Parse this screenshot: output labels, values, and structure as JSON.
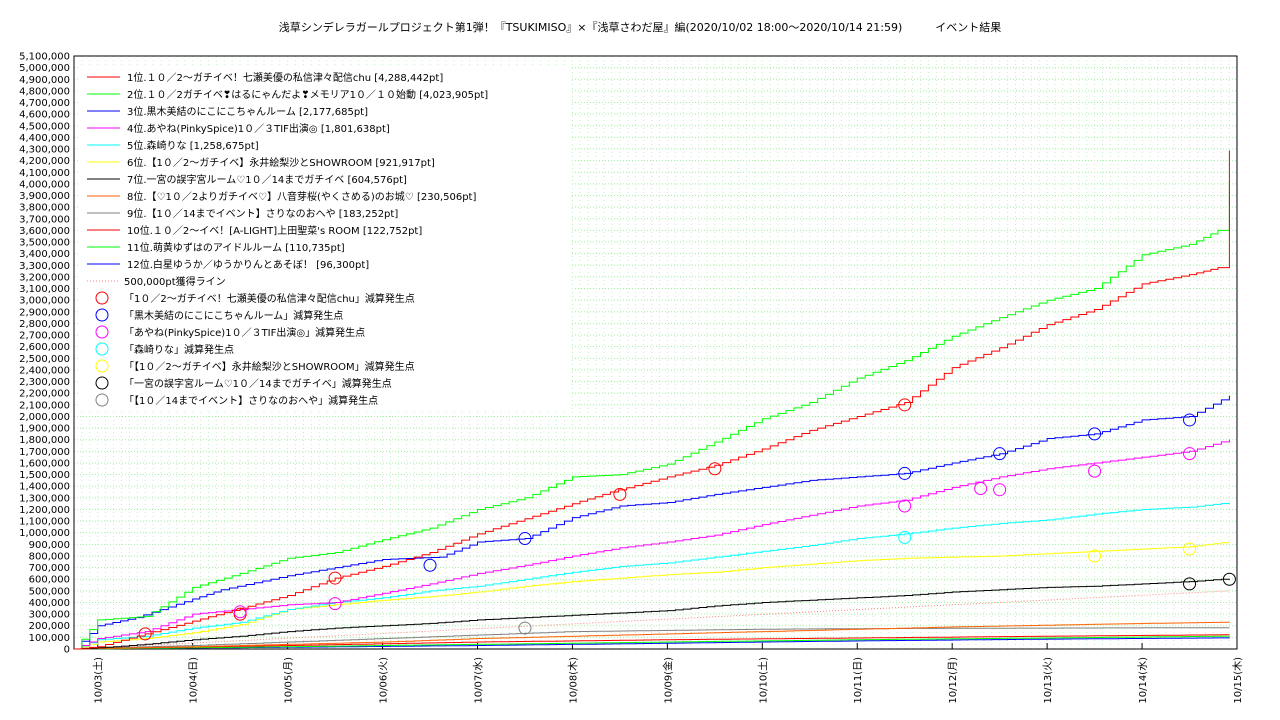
{
  "chart_data": {
    "type": "line",
    "title": "浅草シンデレラガールプロジェクト第1弾！『TSUKIMISO』×『浅草さわだ屋』編(2020/10/02 18:00〜2020/10/14 21:59)　　　イベント結果",
    "ylim": [
      0,
      5100000
    ],
    "y_tick_step": 100000,
    "x_ticks": [
      "10/03(土)",
      "10/04(日)",
      "10/05(月)",
      "10/06(火)",
      "10/07(水)",
      "10/08(木)",
      "10/09(金)",
      "10/10(土)",
      "10/11(日)",
      "10/12(月)",
      "10/13(火)",
      "10/14(水)",
      "10/15(木)"
    ],
    "x_unit": "days from 10/03 00:00",
    "x_range": [
      -0.25,
      12
    ],
    "grid": true,
    "legend_position": "top-left",
    "series": [
      {
        "name": "1位.１０／2〜ガチイベ！七瀬美優の私信津々配信chu [4,288,442pt]",
        "color": "#ff0000",
        "points": [
          [
            -0.25,
            0
          ],
          [
            0,
            20000
          ],
          [
            0.5,
            130000
          ],
          [
            1,
            240000
          ],
          [
            1.5,
            350000
          ],
          [
            2,
            460000
          ],
          [
            2.5,
            610000
          ],
          [
            3,
            710000
          ],
          [
            3.5,
            830000
          ],
          [
            4,
            990000
          ],
          [
            4.5,
            1120000
          ],
          [
            5,
            1250000
          ],
          [
            5.4,
            1350000
          ],
          [
            6,
            1480000
          ],
          [
            6.5,
            1580000
          ],
          [
            7,
            1720000
          ],
          [
            7.5,
            1880000
          ],
          [
            8,
            2000000
          ],
          [
            8.5,
            2120000
          ],
          [
            9,
            2420000
          ],
          [
            9.5,
            2590000
          ],
          [
            10,
            2790000
          ],
          [
            10.5,
            2920000
          ],
          [
            11,
            3140000
          ],
          [
            11.5,
            3220000
          ],
          [
            11.8,
            3280000
          ],
          [
            11.92,
            4288442
          ]
        ]
      },
      {
        "name": "2位.１０／2ガチイベ❣はるにゃんだよ❣メモリア1０／１０始動 [4,023,905pt]",
        "color": "#00ff00",
        "points": [
          [
            -0.25,
            0
          ],
          [
            0,
            250000
          ],
          [
            0.5,
            280000
          ],
          [
            1,
            530000
          ],
          [
            1.5,
            650000
          ],
          [
            2,
            780000
          ],
          [
            2.5,
            830000
          ],
          [
            3,
            940000
          ],
          [
            3.5,
            1040000
          ],
          [
            4,
            1200000
          ],
          [
            4.5,
            1300000
          ],
          [
            5,
            1480000
          ],
          [
            5.5,
            1500000
          ],
          [
            6,
            1590000
          ],
          [
            6.5,
            1780000
          ],
          [
            7,
            1980000
          ],
          [
            7.5,
            2120000
          ],
          [
            8,
            2330000
          ],
          [
            8.5,
            2480000
          ],
          [
            9,
            2690000
          ],
          [
            9.5,
            2850000
          ],
          [
            10,
            3000000
          ],
          [
            10.5,
            3100000
          ],
          [
            11,
            3390000
          ],
          [
            11.5,
            3480000
          ],
          [
            11.8,
            3600000
          ],
          [
            11.92,
            4023905
          ]
        ]
      },
      {
        "name": "3位.黒木美結のにこにこちゃんルーム [2,177,685pt]",
        "color": "#0000ff",
        "points": [
          [
            -0.25,
            0
          ],
          [
            0,
            200000
          ],
          [
            0.4,
            270000
          ],
          [
            1,
            430000
          ],
          [
            1.3,
            510000
          ],
          [
            2,
            630000
          ],
          [
            2.5,
            700000
          ],
          [
            3,
            770000
          ],
          [
            3.6,
            790000
          ],
          [
            4,
            920000
          ],
          [
            4.5,
            950000
          ],
          [
            5,
            1130000
          ],
          [
            5.5,
            1230000
          ],
          [
            6,
            1260000
          ],
          [
            6.5,
            1330000
          ],
          [
            7,
            1390000
          ],
          [
            7.5,
            1450000
          ],
          [
            8,
            1480000
          ],
          [
            8.5,
            1510000
          ],
          [
            9,
            1600000
          ],
          [
            9.5,
            1680000
          ],
          [
            10,
            1810000
          ],
          [
            10.5,
            1850000
          ],
          [
            11,
            1970000
          ],
          [
            11.5,
            2000000
          ],
          [
            11.92,
            2177685
          ]
        ]
      },
      {
        "name": "4位.あやね(PinkySpice)1０／３TIF出演◎ [1,801,638pt]",
        "color": "#ff00ff",
        "points": [
          [
            -0.25,
            0
          ],
          [
            0,
            90000
          ],
          [
            0.5,
            150000
          ],
          [
            1,
            300000
          ],
          [
            1.5,
            340000
          ],
          [
            2,
            380000
          ],
          [
            2.5,
            400000
          ],
          [
            3,
            480000
          ],
          [
            3.5,
            560000
          ],
          [
            4,
            650000
          ],
          [
            4.5,
            720000
          ],
          [
            5,
            800000
          ],
          [
            5.5,
            870000
          ],
          [
            6,
            920000
          ],
          [
            6.5,
            980000
          ],
          [
            7,
            1070000
          ],
          [
            7.5,
            1150000
          ],
          [
            8,
            1230000
          ],
          [
            8.5,
            1280000
          ],
          [
            9,
            1390000
          ],
          [
            9.5,
            1480000
          ],
          [
            10,
            1550000
          ],
          [
            10.5,
            1600000
          ],
          [
            11,
            1650000
          ],
          [
            11.5,
            1700000
          ],
          [
            11.92,
            1801638
          ]
        ]
      },
      {
        "name": "5位.森崎りな [1,258,675pt]",
        "color": "#00ffff",
        "points": [
          [
            -0.25,
            0
          ],
          [
            0,
            80000
          ],
          [
            0.5,
            110000
          ],
          [
            1,
            180000
          ],
          [
            1.5,
            230000
          ],
          [
            2,
            340000
          ],
          [
            2.5,
            400000
          ],
          [
            3,
            440000
          ],
          [
            3.5,
            500000
          ],
          [
            4,
            540000
          ],
          [
            4.5,
            600000
          ],
          [
            5,
            660000
          ],
          [
            5.5,
            710000
          ],
          [
            6,
            740000
          ],
          [
            6.5,
            790000
          ],
          [
            7,
            840000
          ],
          [
            7.5,
            890000
          ],
          [
            8,
            950000
          ],
          [
            8.5,
            990000
          ],
          [
            9,
            1040000
          ],
          [
            9.5,
            1080000
          ],
          [
            10,
            1110000
          ],
          [
            10.5,
            1160000
          ],
          [
            11,
            1200000
          ],
          [
            11.5,
            1220000
          ],
          [
            11.92,
            1258675
          ]
        ]
      },
      {
        "name": "6位.【1０／2〜ガチイベ】永井絵梨沙とSHOWROOM [921,917pt]",
        "color": "#ffff00",
        "points": [
          [
            -0.25,
            0
          ],
          [
            0,
            60000
          ],
          [
            0.5,
            90000
          ],
          [
            1,
            140000
          ],
          [
            1.5,
            210000
          ],
          [
            2,
            340000
          ],
          [
            2.5,
            380000
          ],
          [
            3,
            420000
          ],
          [
            3.5,
            450000
          ],
          [
            4,
            490000
          ],
          [
            4.5,
            540000
          ],
          [
            5,
            580000
          ],
          [
            5.5,
            610000
          ],
          [
            6,
            640000
          ],
          [
            6.5,
            660000
          ],
          [
            7,
            700000
          ],
          [
            7.5,
            730000
          ],
          [
            8,
            760000
          ],
          [
            8.5,
            780000
          ],
          [
            9,
            790000
          ],
          [
            9.5,
            800000
          ],
          [
            10,
            820000
          ],
          [
            10.5,
            840000
          ],
          [
            11,
            860000
          ],
          [
            11.5,
            880000
          ],
          [
            11.92,
            921917
          ]
        ]
      },
      {
        "name": "7位.一宮の誤字宮ルーム♡1０／14までガチイベ [604,576pt]",
        "color": "#000000",
        "points": [
          [
            -0.25,
            0
          ],
          [
            0,
            10000
          ],
          [
            0.5,
            40000
          ],
          [
            1,
            80000
          ],
          [
            1.5,
            110000
          ],
          [
            2,
            150000
          ],
          [
            2.5,
            180000
          ],
          [
            3,
            200000
          ],
          [
            3.5,
            220000
          ],
          [
            4,
            250000
          ],
          [
            4.5,
            270000
          ],
          [
            5,
            290000
          ],
          [
            5.5,
            310000
          ],
          [
            6,
            330000
          ],
          [
            6.5,
            370000
          ],
          [
            7,
            400000
          ],
          [
            7.5,
            420000
          ],
          [
            8,
            440000
          ],
          [
            8.5,
            460000
          ],
          [
            9,
            490000
          ],
          [
            9.5,
            510000
          ],
          [
            10,
            530000
          ],
          [
            10.5,
            540000
          ],
          [
            11,
            560000
          ],
          [
            11.5,
            580000
          ],
          [
            11.92,
            604576
          ]
        ]
      },
      {
        "name": "8位.【♡1０／2よりガチイベ♡】八音芽桜(やくさめる)のお城♡ [230,506pt]",
        "color": "#ff6000",
        "points": [
          [
            -0.25,
            0
          ],
          [
            0,
            5000
          ],
          [
            1,
            20000
          ],
          [
            2,
            40000
          ],
          [
            3,
            60000
          ],
          [
            4,
            90000
          ],
          [
            5,
            110000
          ],
          [
            6,
            130000
          ],
          [
            7,
            150000
          ],
          [
            8,
            170000
          ],
          [
            9,
            190000
          ],
          [
            10,
            205000
          ],
          [
            11,
            220000
          ],
          [
            11.92,
            230506
          ]
        ]
      },
      {
        "name": "9位.【1０／14までイベント】さりなのおへや [183,252pt]",
        "color": "#808080",
        "points": [
          [
            -0.25,
            0
          ],
          [
            0,
            10000
          ],
          [
            1,
            30000
          ],
          [
            2,
            60000
          ],
          [
            3,
            90000
          ],
          [
            4,
            120000
          ],
          [
            5,
            150000
          ],
          [
            6,
            160000
          ],
          [
            7,
            170000
          ],
          [
            8,
            175000
          ],
          [
            9,
            178000
          ],
          [
            10,
            180000
          ],
          [
            11,
            182000
          ],
          [
            11.92,
            183252
          ]
        ]
      },
      {
        "name": "10位.１０／2〜イベ！[A-LIGHT]上田聖菜's ROOM [122,752pt]",
        "color": "#ff0000",
        "points": [
          [
            -0.25,
            0
          ],
          [
            0,
            5000
          ],
          [
            2,
            30000
          ],
          [
            4,
            60000
          ],
          [
            6,
            80000
          ],
          [
            8,
            95000
          ],
          [
            10,
            110000
          ],
          [
            11.92,
            122752
          ]
        ]
      },
      {
        "name": "11位.萌黄ゆずはのアイドルルーム [110,735pt]",
        "color": "#00ff00",
        "points": [
          [
            -0.25,
            0
          ],
          [
            0,
            2000
          ],
          [
            2,
            20000
          ],
          [
            4,
            40000
          ],
          [
            6,
            60000
          ],
          [
            8,
            80000
          ],
          [
            10,
            95000
          ],
          [
            11.92,
            110735
          ]
        ]
      },
      {
        "name": "12位.白星ゆうか／ゆうかりんとあそぼ！ [96,300pt]",
        "color": "#0000ff",
        "points": [
          [
            -0.25,
            0
          ],
          [
            0,
            3000
          ],
          [
            2,
            15000
          ],
          [
            4,
            30000
          ],
          [
            6,
            50000
          ],
          [
            8,
            70000
          ],
          [
            10,
            85000
          ],
          [
            11.92,
            96300
          ]
        ]
      }
    ],
    "reference_line": {
      "name": "500,000pt獲得ライン",
      "color": "#ff8080",
      "points": [
        [
          -0.25,
          0
        ],
        [
          11.92,
          500000
        ]
      ]
    },
    "markers": [
      {
        "name": "「1０／2〜ガチイベ！七瀬美優の私信津々配信chu」減算発生点",
        "color": "#ff0000",
        "points": [
          [
            0.5,
            130000
          ],
          [
            1.5,
            300000
          ],
          [
            2.5,
            610000
          ],
          [
            5.5,
            1330000
          ],
          [
            6.5,
            1550000
          ],
          [
            8.5,
            2100000
          ]
        ]
      },
      {
        "name": "「黒木美結のにこにこちゃんルーム」減算発生点",
        "color": "#0000ff",
        "points": [
          [
            3.5,
            720000
          ],
          [
            4.5,
            950000
          ],
          [
            8.5,
            1510000
          ],
          [
            9.5,
            1680000
          ],
          [
            10.5,
            1850000
          ],
          [
            11.5,
            1970000
          ]
        ]
      },
      {
        "name": "「あやね(PinkySpice)1０／３TIF出演◎」減算発生点",
        "color": "#ff00ff",
        "points": [
          [
            1.5,
            320000
          ],
          [
            2.5,
            390000
          ],
          [
            8.5,
            1230000
          ],
          [
            9.3,
            1380000
          ],
          [
            9.5,
            1370000
          ],
          [
            10.5,
            1530000
          ],
          [
            11.5,
            1680000
          ]
        ]
      },
      {
        "name": "「森崎りな」減算発生点",
        "color": "#00ffff",
        "points": [
          [
            8.5,
            960000
          ]
        ]
      },
      {
        "name": "「【1０／2〜ガチイベ】永井絵梨沙とSHOWROOM」減算発生点",
        "color": "#ffff00",
        "points": [
          [
            10.5,
            800000
          ],
          [
            11.5,
            860000
          ]
        ]
      },
      {
        "name": "「一宮の誤字宮ルーム♡1０／14までガチイベ」減算発生点",
        "color": "#000000",
        "points": [
          [
            11.5,
            560000
          ],
          [
            11.92,
            600000
          ]
        ]
      },
      {
        "name": "「【1０／14までイベント】さりなのおへや」減算発生点",
        "color": "#808080",
        "points": [
          [
            4.5,
            180000
          ]
        ]
      }
    ]
  }
}
